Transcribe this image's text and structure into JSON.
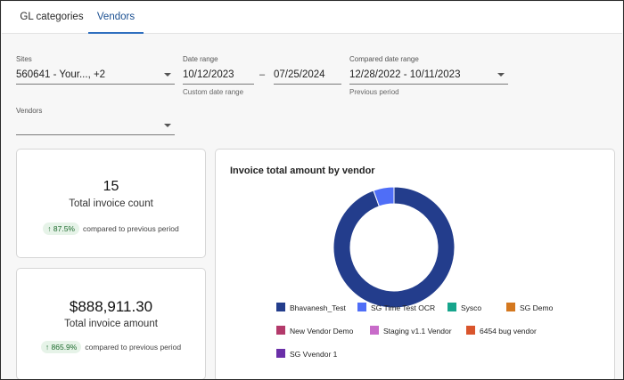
{
  "tabs": [
    {
      "label": "GL categories",
      "active": false
    },
    {
      "label": "Vendors",
      "active": true
    }
  ],
  "filters": {
    "sites": {
      "label": "Sites",
      "value": "560641 - Your..., +2"
    },
    "date_range": {
      "label": "Date range",
      "start": "10/12/2023",
      "separator": "–",
      "end": "07/25/2024",
      "help": "Custom date range"
    },
    "compared_range": {
      "label": "Compared date range",
      "value": "12/28/2022 - 10/11/2023",
      "help": "Previous period"
    },
    "vendors": {
      "label": "Vendors",
      "value": ""
    }
  },
  "kpis": {
    "count": {
      "value": "15",
      "label": "Total invoice count",
      "change": "↑ 87.5%",
      "compare_text": "compared to previous period"
    },
    "amount": {
      "value": "$888,911.30",
      "label": "Total invoice amount",
      "change": "↑ 865.9%",
      "compare_text": "compared to previous period"
    }
  },
  "chart_data": {
    "type": "pie",
    "title": "Invoice total amount by vendor",
    "donut": true,
    "categories": [
      "Bhavanesh_Test",
      "SG Time Test OCR",
      "Sysco",
      "SG Demo",
      "New Vendor Demo",
      "Staging v1.1 Vendor",
      "6454 bug vendor",
      "SG Vvendor 1"
    ],
    "values": [
      94.5,
      5.5,
      0,
      0,
      0,
      0,
      0,
      0
    ],
    "colors": [
      "#233d8c",
      "#4f6ef7",
      "#16a58c",
      "#d4781f",
      "#b33a6b",
      "#c86bc9",
      "#d9552c",
      "#6a2fa8"
    ],
    "legend_position": "bottom"
  }
}
